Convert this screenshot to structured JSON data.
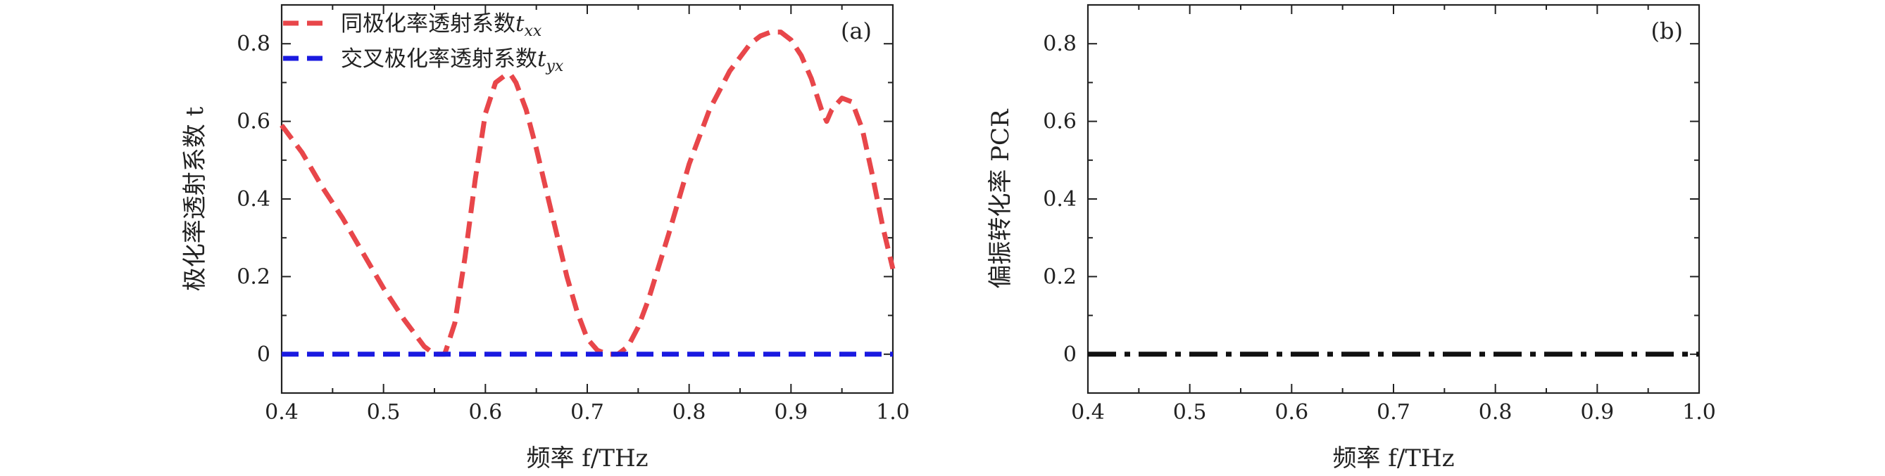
{
  "chart_data": [
    {
      "id": "a",
      "type": "line",
      "panel_label": "(a)",
      "xlabel": "频率 f/THz",
      "ylabel": "极化率透射系数 t",
      "xlim": [
        0.4,
        1.0
      ],
      "ylim": [
        -0.1,
        0.9
      ],
      "xticks": [
        0.4,
        0.5,
        0.6,
        0.7,
        0.8,
        0.9,
        1.0
      ],
      "xtick_labels": [
        "0.4",
        "0.5",
        "0.6",
        "0.7",
        "0.8",
        "0.9",
        "1.0"
      ],
      "yticks": [
        0,
        0.2,
        0.4,
        0.6,
        0.8
      ],
      "ytick_labels": [
        "0",
        "0.2",
        "0.4",
        "0.6",
        "0.8"
      ],
      "legend": [
        {
          "label": "同极化率透射系数",
          "sub": "t",
          "subscript": "xx",
          "color": "#e8464a"
        },
        {
          "label": "交叉极化率透射系数",
          "sub": "t",
          "subscript": "yx",
          "color": "#1a1ae0"
        }
      ],
      "series": [
        {
          "name": "同极化率透射系数 t_xx",
          "color": "#e8464a",
          "style": "dashed",
          "x": [
            0.4,
            0.42,
            0.44,
            0.46,
            0.48,
            0.5,
            0.52,
            0.54,
            0.55,
            0.56,
            0.57,
            0.58,
            0.59,
            0.6,
            0.61,
            0.62,
            0.625,
            0.63,
            0.64,
            0.65,
            0.66,
            0.67,
            0.68,
            0.69,
            0.7,
            0.71,
            0.72,
            0.73,
            0.74,
            0.75,
            0.76,
            0.78,
            0.8,
            0.82,
            0.84,
            0.86,
            0.87,
            0.88,
            0.89,
            0.9,
            0.91,
            0.92,
            0.93,
            0.935,
            0.94,
            0.95,
            0.96,
            0.97,
            0.98,
            0.99,
            1.0
          ],
          "y": [
            0.59,
            0.52,
            0.43,
            0.35,
            0.26,
            0.17,
            0.09,
            0.02,
            0.0,
            0.0,
            0.08,
            0.25,
            0.45,
            0.62,
            0.7,
            0.72,
            0.72,
            0.7,
            0.63,
            0.53,
            0.42,
            0.31,
            0.2,
            0.11,
            0.04,
            0.01,
            0.0,
            0.0,
            0.02,
            0.07,
            0.14,
            0.31,
            0.49,
            0.63,
            0.73,
            0.8,
            0.82,
            0.83,
            0.83,
            0.81,
            0.77,
            0.71,
            0.63,
            0.6,
            0.63,
            0.66,
            0.65,
            0.58,
            0.46,
            0.33,
            0.22
          ]
        },
        {
          "name": "交叉极化率透射系数 t_yx",
          "color": "#1a1ae0",
          "style": "dashed",
          "x": [
            0.4,
            1.0
          ],
          "y": [
            0,
            0
          ]
        }
      ]
    },
    {
      "id": "b",
      "type": "line",
      "panel_label": "(b)",
      "xlabel": "频率 f/THz",
      "ylabel": "偏振转化率 PCR",
      "xlim": [
        0.4,
        1.0
      ],
      "ylim": [
        -0.1,
        0.9
      ],
      "xticks": [
        0.4,
        0.5,
        0.6,
        0.7,
        0.8,
        0.9,
        1.0
      ],
      "xtick_labels": [
        "0.4",
        "0.5",
        "0.6",
        "0.7",
        "0.8",
        "0.9",
        "1.0"
      ],
      "yticks": [
        0,
        0.2,
        0.4,
        0.6,
        0.8
      ],
      "ytick_labels": [
        "0",
        "0.2",
        "0.4",
        "0.6",
        "0.8"
      ],
      "series": [
        {
          "name": "PCR",
          "color": "#111111",
          "style": "dashdot",
          "x": [
            0.4,
            1.0
          ],
          "y": [
            0,
            0
          ]
        }
      ]
    }
  ]
}
